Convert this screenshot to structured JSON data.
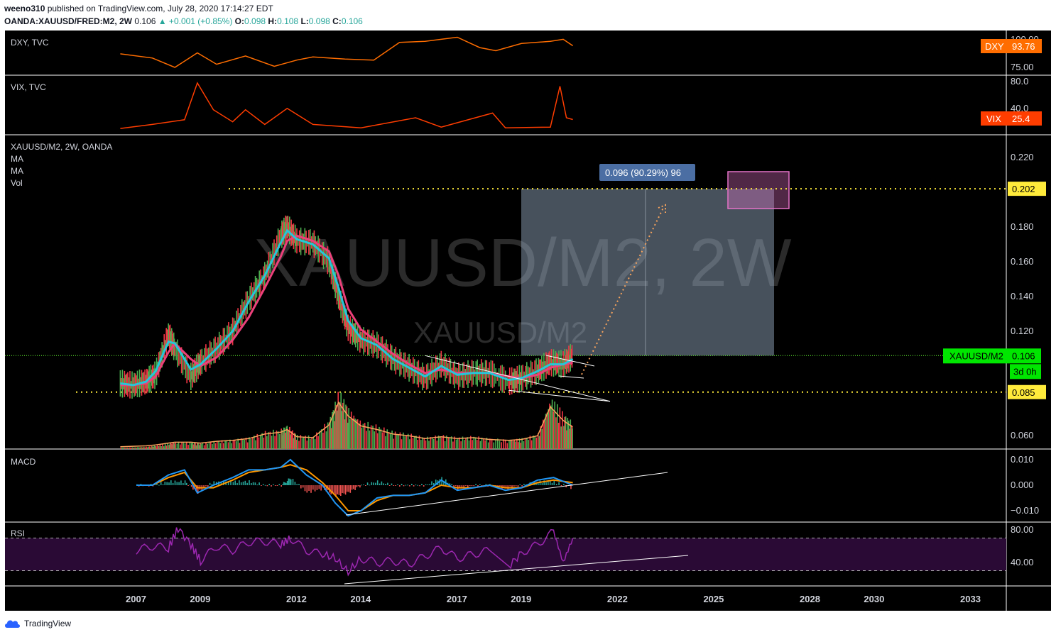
{
  "header": {
    "publisher": "weeno310",
    "published_text": "published on TradingView.com, July 28, 2020 17:14:27 EDT",
    "symbol_line": "OANDA:XAUUSD/FRED:M2, 2W",
    "last": "0.106",
    "change": "▲ +0.001 (+0.85%)",
    "o_label": "O:",
    "o": "0.098",
    "h_label": "H:",
    "h": "0.108",
    "l_label": "L:",
    "l": "0.098",
    "c_label": "C:",
    "c": "0.106"
  },
  "footer": {
    "brand": "TradingView",
    "icon": "tradingview-cloud-icon"
  },
  "watermark": {
    "big": "XAUUSD/M2, 2W",
    "small": "XAUUSD/M2"
  },
  "colors": {
    "background": "#000000",
    "dxy": "#ff6d00",
    "vix": "#ff3d00",
    "ma_fast": "#26c6da",
    "ma_slow": "#ec407a",
    "candle_up": "#4caf50",
    "candle_down": "#f23645",
    "volume_ma": "#f7a35c",
    "macd": "#2196f3",
    "signal": "#ff9800",
    "rsi": "#9c27b0",
    "rsi_band": "#2a0a35",
    "level_line": "#ffeb3b",
    "price_line": "#66ff33",
    "measure_box": "#9eb3cc",
    "measure_label": "#4b6ea3",
    "target_box": "#e573c8"
  },
  "chart_data": [
    {
      "type": "line",
      "pane": "DXY",
      "title": "DXY, TVC",
      "y_ticks": [
        "100.00",
        "75.00"
      ],
      "last_label": "DXY",
      "last_value": "93.76",
      "x": [
        2006.5,
        2007.5,
        2008.2,
        2008.9,
        2009.5,
        2010.4,
        2011.3,
        2012.0,
        2012.5,
        2013.5,
        2014.4,
        2015.2,
        2016.0,
        2017.0,
        2017.7,
        2018.2,
        2019.0,
        2019.9,
        2020.3,
        2020.6
      ],
      "values": [
        86,
        82,
        73,
        87,
        76,
        84,
        74,
        80,
        83,
        81,
        80,
        97,
        98,
        102,
        92,
        89,
        96,
        98,
        100,
        93.8
      ]
    },
    {
      "type": "line",
      "pane": "VIX",
      "title": "VIX, TVC",
      "y_ticks": [
        "80.0",
        "40.0"
      ],
      "last_label": "VIX",
      "last_value": "25.4",
      "x": [
        2006.5,
        2007.5,
        2008.5,
        2008.9,
        2009.4,
        2010.0,
        2010.4,
        2011.0,
        2011.7,
        2012.5,
        2014.0,
        2015.7,
        2016.5,
        2018.1,
        2018.5,
        2019.9,
        2020.2,
        2020.4,
        2020.6
      ],
      "values": [
        12,
        18,
        25,
        80,
        40,
        22,
        40,
        18,
        42,
        18,
        13,
        28,
        14,
        35,
        13,
        14,
        75,
        28,
        25.4
      ]
    },
    {
      "type": "line",
      "pane": "XAUUSD/M2",
      "title": "XAUUSD/M2, 2W, OANDA",
      "indicator_labels": [
        "MA",
        "MA",
        "Vol"
      ],
      "y_ticks": [
        "0.220",
        "0.180",
        "0.160",
        "0.140",
        "0.120",
        "0.060"
      ],
      "x_ticks": [
        "2007",
        "2009",
        "2012",
        "2014",
        "2017",
        "2019",
        "2022",
        "2025",
        "2028",
        "2030",
        "2033"
      ],
      "levels": [
        {
          "label": "0.202",
          "value": 0.202
        },
        {
          "label": "0.085",
          "value": 0.085
        }
      ],
      "last_label": "XAUUSD/M2",
      "last_value": "0.106",
      "countdown": "3d 0h",
      "measure_label": "0.096 (90.29%) 96",
      "x": [
        2006.5,
        2006.9,
        2007.3,
        2007.6,
        2008.0,
        2008.2,
        2008.7,
        2009.0,
        2009.5,
        2010.0,
        2010.5,
        2011.0,
        2011.5,
        2011.7,
        2012.0,
        2012.5,
        2013.0,
        2013.3,
        2013.6,
        2014.0,
        2014.5,
        2015.0,
        2015.5,
        2016.0,
        2016.5,
        2017.0,
        2017.5,
        2018.0,
        2018.6,
        2019.0,
        2019.5,
        2019.9,
        2020.3,
        2020.6
      ],
      "values": [
        0.09,
        0.089,
        0.091,
        0.095,
        0.118,
        0.11,
        0.094,
        0.102,
        0.11,
        0.12,
        0.138,
        0.152,
        0.175,
        0.18,
        0.172,
        0.171,
        0.16,
        0.14,
        0.122,
        0.115,
        0.112,
        0.104,
        0.099,
        0.093,
        0.101,
        0.094,
        0.096,
        0.096,
        0.091,
        0.093,
        0.097,
        0.102,
        0.101,
        0.106
      ],
      "ma_fast": [
        0.09,
        0.089,
        0.091,
        0.097,
        0.114,
        0.113,
        0.098,
        0.101,
        0.11,
        0.12,
        0.137,
        0.152,
        0.171,
        0.178,
        0.173,
        0.17,
        0.162,
        0.145,
        0.126,
        0.116,
        0.112,
        0.104,
        0.099,
        0.094,
        0.1,
        0.095,
        0.096,
        0.096,
        0.092,
        0.093,
        0.097,
        0.101,
        0.101,
        0.104
      ],
      "ma_slow": [
        0.089,
        0.089,
        0.09,
        0.094,
        0.108,
        0.113,
        0.104,
        0.1,
        0.105,
        0.115,
        0.128,
        0.145,
        0.163,
        0.172,
        0.175,
        0.172,
        0.166,
        0.152,
        0.133,
        0.121,
        0.114,
        0.107,
        0.101,
        0.096,
        0.098,
        0.096,
        0.096,
        0.096,
        0.094,
        0.093,
        0.095,
        0.099,
        0.101,
        0.102
      ],
      "volume_scale": [
        0.02,
        0.03,
        0.04,
        0.06,
        0.1,
        0.12,
        0.12,
        0.1,
        0.14,
        0.16,
        0.2,
        0.3,
        0.34,
        0.4,
        0.24,
        0.22,
        0.5,
        1.0,
        0.7,
        0.48,
        0.4,
        0.3,
        0.26,
        0.2,
        0.24,
        0.2,
        0.22,
        0.18,
        0.16,
        0.18,
        0.26,
        0.9,
        0.6,
        0.45
      ]
    },
    {
      "type": "line",
      "pane": "MACD",
      "title": "MACD",
      "y_ticks": [
        "0.010",
        "0.000",
        "−0.010"
      ],
      "x": [
        2007.0,
        2007.5,
        2008.0,
        2008.5,
        2008.9,
        2009.4,
        2010.0,
        2010.5,
        2011.0,
        2011.5,
        2011.8,
        2012.3,
        2012.8,
        2013.2,
        2013.6,
        2014.0,
        2014.5,
        2015.0,
        2015.5,
        2016.0,
        2016.5,
        2017.0,
        2017.5,
        2018.0,
        2018.5,
        2019.0,
        2019.5,
        2020.0,
        2020.6
      ],
      "macd": [
        0.0,
        0.0,
        0.004,
        0.006,
        -0.003,
        0.0,
        0.003,
        0.006,
        0.006,
        0.007,
        0.01,
        0.004,
        0.0,
        -0.007,
        -0.012,
        -0.01,
        -0.005,
        -0.004,
        -0.004,
        -0.003,
        0.002,
        -0.002,
        -0.001,
        0.0,
        -0.002,
        -0.001,
        0.002,
        0.003,
        0.0
      ],
      "signal": [
        0.0,
        0.0,
        0.003,
        0.005,
        -0.001,
        -0.001,
        0.002,
        0.005,
        0.006,
        0.007,
        0.008,
        0.006,
        0.001,
        -0.004,
        -0.01,
        -0.01,
        -0.006,
        -0.004,
        -0.004,
        -0.003,
        0.0,
        -0.001,
        -0.001,
        0.0,
        -0.001,
        -0.001,
        0.001,
        0.002,
        0.001
      ]
    },
    {
      "type": "line",
      "pane": "RSI",
      "title": "RSI",
      "y_ticks": [
        "80.00",
        "40.00"
      ],
      "band": [
        30,
        70
      ],
      "x": [
        2007.0,
        2007.5,
        2008.0,
        2008.3,
        2008.7,
        2009.0,
        2009.5,
        2010.0,
        2010.5,
        2011.0,
        2011.5,
        2011.8,
        2012.3,
        2012.8,
        2013.2,
        2013.6,
        2014.0,
        2014.5,
        2015.0,
        2015.5,
        2016.0,
        2016.5,
        2017.0,
        2017.5,
        2018.0,
        2018.6,
        2019.0,
        2019.5,
        2020.0,
        2020.3,
        2020.6
      ],
      "values": [
        55,
        60,
        58,
        82,
        62,
        42,
        60,
        55,
        65,
        66,
        62,
        70,
        55,
        50,
        45,
        28,
        45,
        40,
        42,
        38,
        48,
        58,
        45,
        50,
        55,
        35,
        52,
        62,
        78,
        40,
        70
      ]
    }
  ]
}
